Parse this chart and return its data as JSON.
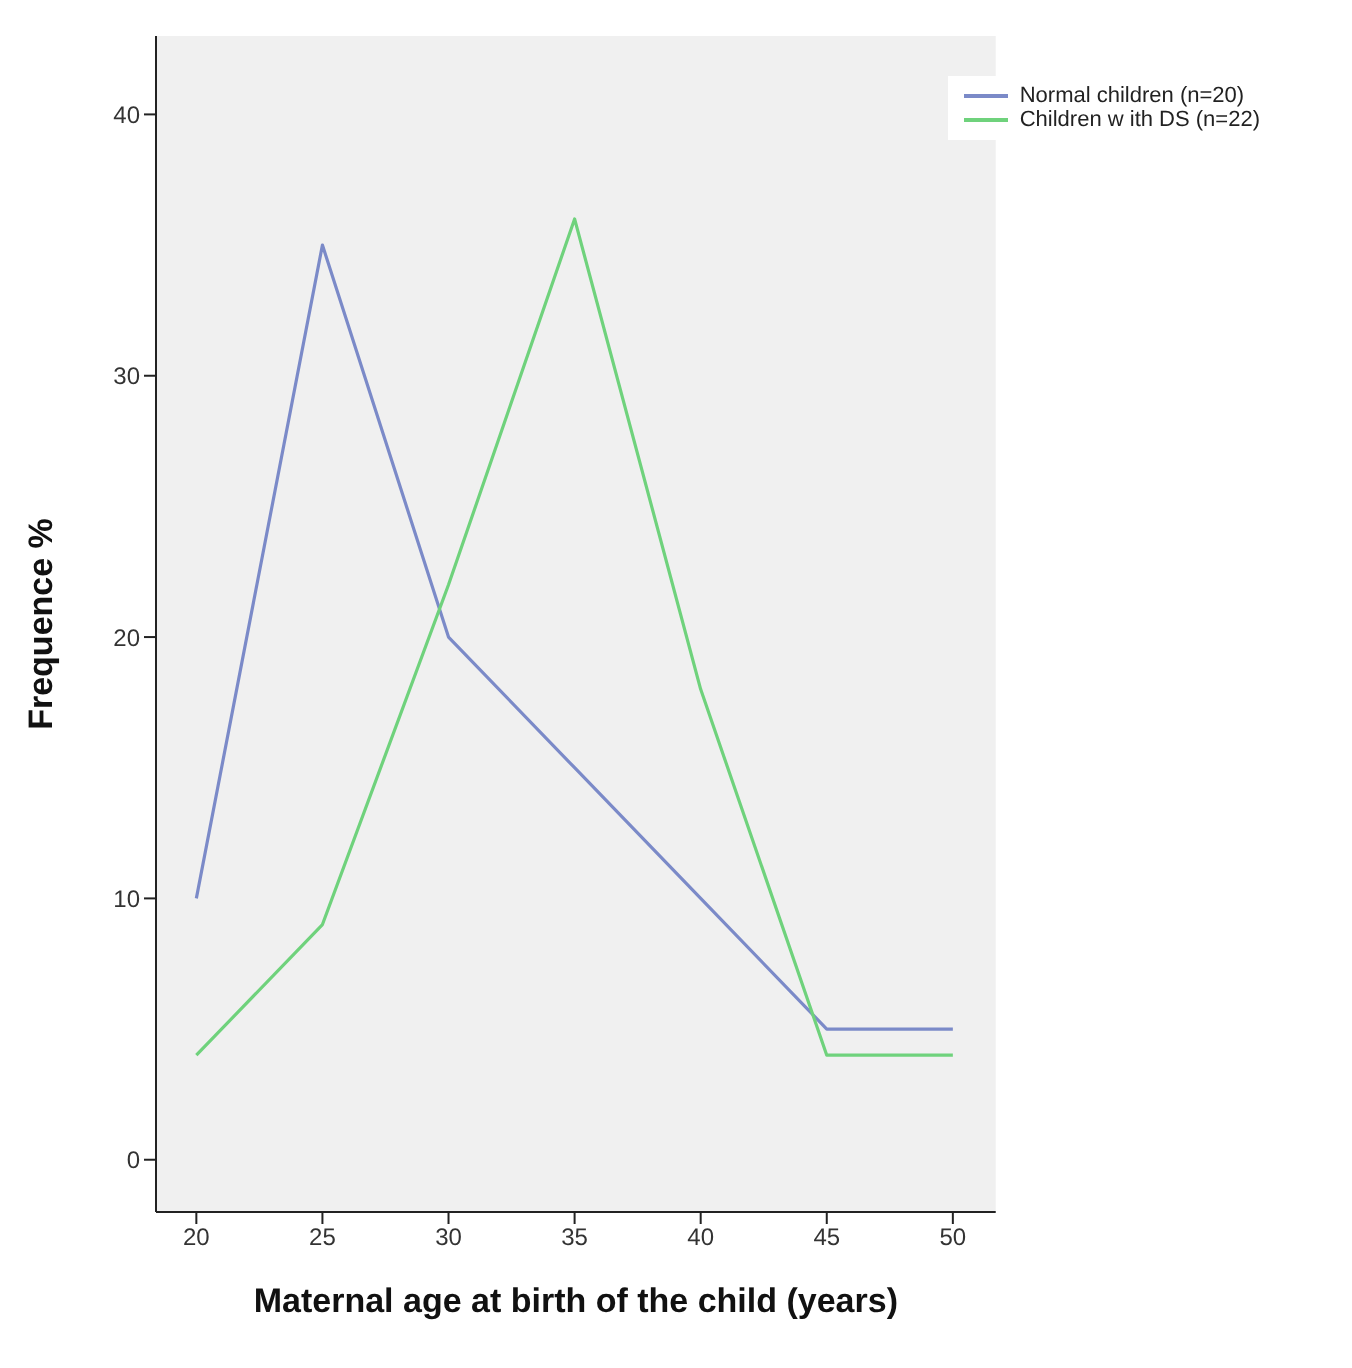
{
  "chart_data": {
    "type": "line",
    "xlabel": "Maternal age at birth of the child (years)",
    "ylabel": "Frequence %",
    "x": [
      20,
      25,
      30,
      35,
      40,
      45,
      50
    ],
    "series": [
      {
        "name": "Normal children (n=20)",
        "color": "#7b8ac8",
        "values": [
          10,
          35,
          20,
          15,
          10,
          5,
          5
        ]
      },
      {
        "name": "Children w ith DS (n=22)",
        "color": "#6fd27c",
        "values": [
          4,
          9,
          22,
          36,
          18,
          4,
          4
        ]
      }
    ],
    "xlim": [
      18.4,
      51.7
    ],
    "xticks": [
      20,
      25,
      30,
      35,
      40,
      45,
      50
    ],
    "ylim": [
      -2,
      43
    ],
    "yticks": [
      0,
      10,
      20,
      30,
      40
    ],
    "legend": "top right",
    "marker": "none",
    "line_style": "solid"
  }
}
